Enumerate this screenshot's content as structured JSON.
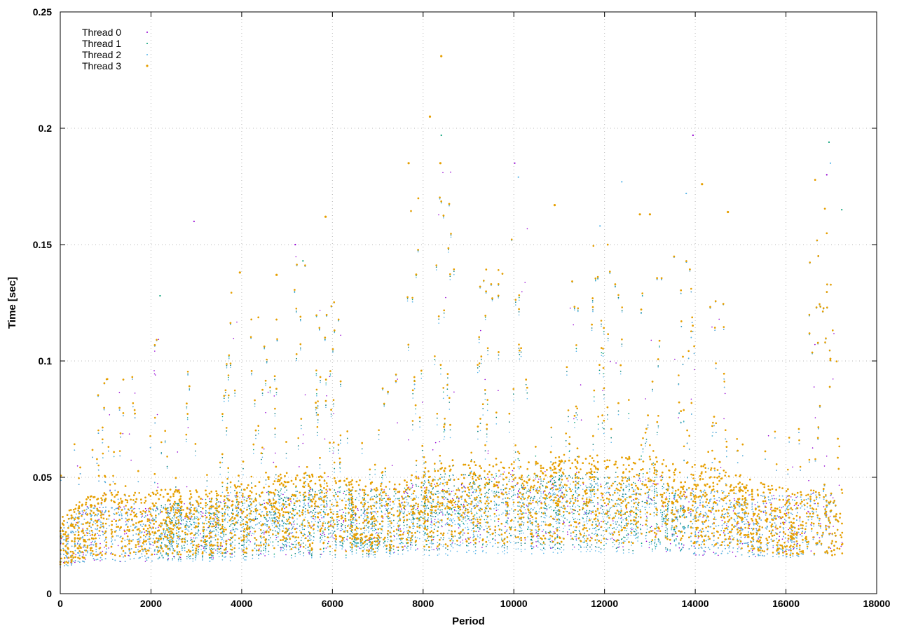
{
  "chart_data": {
    "type": "scatter",
    "title": "",
    "xlabel": "Period",
    "ylabel": "Time [sec]",
    "xlim": [
      0,
      18000
    ],
    "ylim": [
      0,
      0.25
    ],
    "x_ticks": [
      "0",
      "2000",
      "4000",
      "6000",
      "8000",
      "10000",
      "12000",
      "14000",
      "16000",
      "18000"
    ],
    "y_ticks": [
      "0",
      "0.05",
      "0.1",
      "0.15",
      "0.2",
      "0.25"
    ],
    "grid": true,
    "legend_position": "top-left",
    "x_range_of_data": [
      0,
      17250
    ],
    "series": [
      {
        "name": "Thread 0",
        "color": "#9400d3",
        "baseline": [
          [
            0,
            0.02
          ],
          [
            600,
            0.025
          ],
          [
            2000,
            0.025
          ],
          [
            3500,
            0.028
          ],
          [
            5000,
            0.03
          ],
          [
            7000,
            0.03
          ],
          [
            9000,
            0.035
          ],
          [
            12000,
            0.035
          ],
          [
            14000,
            0.03
          ],
          [
            16000,
            0.028
          ],
          [
            17250,
            0.03
          ]
        ],
        "outliers": [
          [
            2950,
            0.16
          ],
          [
            5180,
            0.15
          ],
          [
            13950,
            0.197
          ],
          [
            10020,
            0.185
          ],
          [
            16900,
            0.18
          ]
        ]
      },
      {
        "name": "Thread 1",
        "color": "#009e73",
        "baseline": [
          [
            0,
            0.02
          ],
          [
            600,
            0.025
          ],
          [
            2000,
            0.025
          ],
          [
            3500,
            0.028
          ],
          [
            5000,
            0.03
          ],
          [
            7000,
            0.03
          ],
          [
            9000,
            0.035
          ],
          [
            12000,
            0.035
          ],
          [
            14000,
            0.03
          ],
          [
            16000,
            0.028
          ],
          [
            17250,
            0.03
          ]
        ],
        "outliers": [
          [
            8400,
            0.197
          ],
          [
            16950,
            0.194
          ],
          [
            17230,
            0.165
          ],
          [
            2200,
            0.128
          ],
          [
            5350,
            0.143
          ]
        ]
      },
      {
        "name": "Thread 2",
        "color": "#56b4e9",
        "baseline": [
          [
            0,
            0.02
          ],
          [
            600,
            0.025
          ],
          [
            2000,
            0.025
          ],
          [
            3500,
            0.025
          ],
          [
            5000,
            0.028
          ],
          [
            7000,
            0.028
          ],
          [
            9000,
            0.03
          ],
          [
            12000,
            0.032
          ],
          [
            14000,
            0.03
          ],
          [
            16000,
            0.028
          ],
          [
            17250,
            0.03
          ]
        ],
        "outliers": [
          [
            10100,
            0.179
          ],
          [
            16980,
            0.185
          ],
          [
            12380,
            0.177
          ],
          [
            11900,
            0.158
          ],
          [
            13800,
            0.172
          ]
        ]
      },
      {
        "name": "Thread 3",
        "color": "#e69f00",
        "baseline": [
          [
            0,
            0.022
          ],
          [
            600,
            0.028
          ],
          [
            2000,
            0.03
          ],
          [
            3500,
            0.03
          ],
          [
            5000,
            0.035
          ],
          [
            7000,
            0.032
          ],
          [
            9000,
            0.038
          ],
          [
            12000,
            0.04
          ],
          [
            14000,
            0.038
          ],
          [
            16000,
            0.03
          ],
          [
            17250,
            0.03
          ]
        ],
        "outliers": [
          [
            8400,
            0.231
          ],
          [
            8150,
            0.205
          ],
          [
            7680,
            0.185
          ],
          [
            8380,
            0.185
          ],
          [
            14150,
            0.176
          ],
          [
            5850,
            0.162
          ],
          [
            10900,
            0.167
          ],
          [
            12780,
            0.163
          ],
          [
            13000,
            0.163
          ],
          [
            14720,
            0.164
          ],
          [
            4770,
            0.137
          ],
          [
            3960,
            0.138
          ]
        ]
      }
    ],
    "spike_regions": [
      {
        "x_range": [
          800,
          1400
        ],
        "peak": 0.095
      },
      {
        "x_range": [
          1550,
          1700
        ],
        "peak": 0.11
      },
      {
        "x_range": [
          2050,
          2200
        ],
        "peak": 0.115
      },
      {
        "x_range": [
          2700,
          2850
        ],
        "peak": 0.122
      },
      {
        "x_range": [
          3550,
          4000
        ],
        "peak": 0.13
      },
      {
        "x_range": [
          4200,
          4800
        ],
        "peak": 0.12
      },
      {
        "x_range": [
          5150,
          5450
        ],
        "peak": 0.15
      },
      {
        "x_range": [
          5600,
          6200
        ],
        "peak": 0.13
      },
      {
        "x_range": [
          7100,
          7450
        ],
        "peak": 0.1
      },
      {
        "x_range": [
          7650,
          8000
        ],
        "peak": 0.17
      },
      {
        "x_range": [
          8200,
          8700
        ],
        "peak": 0.185
      },
      {
        "x_range": [
          9200,
          9750
        ],
        "peak": 0.14
      },
      {
        "x_range": [
          9950,
          10350
        ],
        "peak": 0.16
      },
      {
        "x_range": [
          11100,
          11500
        ],
        "peak": 0.14
      },
      {
        "x_range": [
          11700,
          12400
        ],
        "peak": 0.15
      },
      {
        "x_range": [
          12800,
          13300
        ],
        "peak": 0.145
      },
      {
        "x_range": [
          13500,
          14000
        ],
        "peak": 0.15
      },
      {
        "x_range": [
          14300,
          14700
        ],
        "peak": 0.13
      },
      {
        "x_range": [
          16500,
          17200
        ],
        "peak": 0.185
      }
    ]
  }
}
